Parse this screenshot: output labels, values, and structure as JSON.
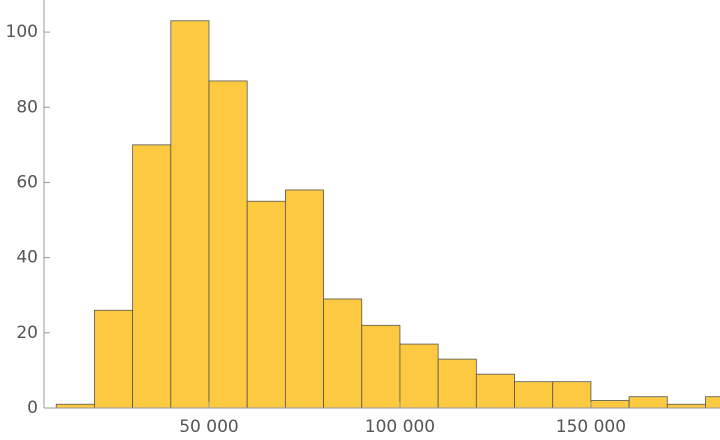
{
  "chart_data": {
    "type": "histogram",
    "bins": [
      10000,
      20000,
      30000,
      40000,
      50000,
      60000,
      70000,
      80000,
      90000,
      100000,
      110000,
      120000,
      130000,
      140000,
      150000,
      160000,
      170000,
      180000,
      190000
    ],
    "values": [
      1,
      26,
      70,
      103,
      87,
      55,
      58,
      29,
      22,
      17,
      13,
      9,
      7,
      7,
      2,
      3,
      1,
      3
    ],
    "color": "#fdc940",
    "xlim": [
      6800,
      183800
    ],
    "xticks": [
      {
        "value": 50000,
        "label": "50 000"
      },
      {
        "value": 100000,
        "label": "100 000"
      },
      {
        "value": 150000,
        "label": "150 000"
      }
    ],
    "ylim": [
      0,
      108
    ],
    "yticks": [
      0,
      20,
      40,
      60,
      80,
      100
    ]
  }
}
